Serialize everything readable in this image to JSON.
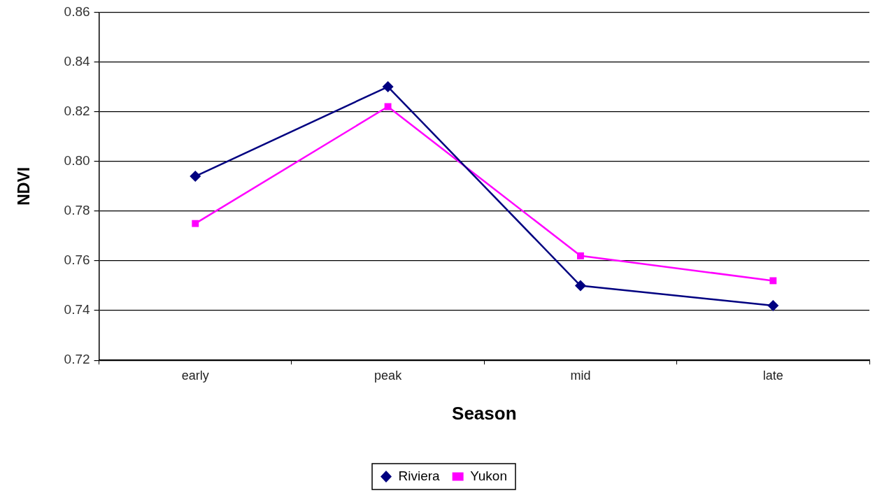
{
  "chart_data": {
    "type": "line",
    "xlabel": "Season",
    "ylabel": "NDVI",
    "categories": [
      "early",
      "peak",
      "mid",
      "late"
    ],
    "series": [
      {
        "name": "Riviera",
        "color": "#000080",
        "marker": "diamond",
        "values": [
          0.794,
          0.83,
          0.75,
          0.742
        ]
      },
      {
        "name": "Yukon",
        "color": "#ff00ff",
        "marker": "square",
        "values": [
          0.775,
          0.822,
          0.762,
          0.752
        ]
      }
    ],
    "ylim": [
      0.72,
      0.86
    ],
    "yticks": [
      0.72,
      0.74,
      0.76,
      0.78,
      {
        "value": 0.8,
        "label": "0.80"
      },
      0.82,
      0.84,
      0.86
    ],
    "grid": "y",
    "legend": "bottom",
    "line_style": "solid"
  }
}
